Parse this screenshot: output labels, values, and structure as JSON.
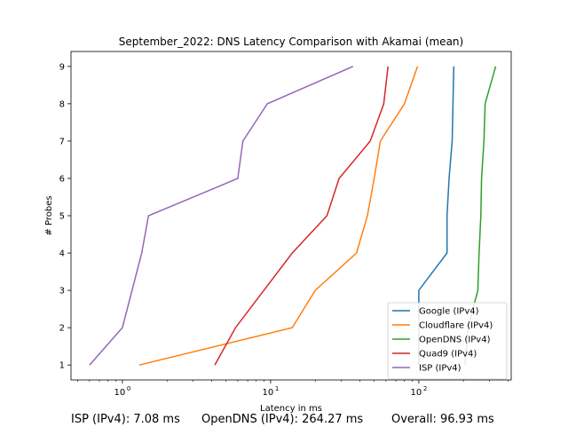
{
  "chart_data": {
    "type": "line",
    "title": "September_2022: DNS Latency Comparison with Akamai (mean)",
    "xlabel": "Latency in ms",
    "ylabel": "# Probes",
    "xscale": "log",
    "xlim": [
      0.45,
      420
    ],
    "ylim": [
      0.6,
      9.4
    ],
    "x_ticks": [
      1,
      10,
      100
    ],
    "x_tick_labels": [
      "10^0",
      "10^1",
      "10^2"
    ],
    "y_ticks": [
      1,
      2,
      3,
      4,
      5,
      6,
      7,
      8,
      9
    ],
    "grid": false,
    "legend_position": "bottom-right",
    "series": [
      {
        "name": "Google (IPv4)",
        "color": "#1f77b4",
        "points": [
          [
            100,
            1
          ],
          [
            100,
            2
          ],
          [
            100,
            3
          ],
          [
            155,
            4
          ],
          [
            155,
            5
          ],
          [
            160,
            6
          ],
          [
            168,
            7
          ],
          [
            170,
            8
          ],
          [
            172,
            9
          ]
        ]
      },
      {
        "name": "Cloudflare (IPv4)",
        "color": "#ff7f0e",
        "points": [
          [
            1.3,
            1
          ],
          [
            14,
            2
          ],
          [
            20,
            3
          ],
          [
            38,
            4
          ],
          [
            45,
            5
          ],
          [
            50,
            6
          ],
          [
            55,
            7
          ],
          [
            80,
            8
          ],
          [
            98,
            9
          ]
        ]
      },
      {
        "name": "OpenDNS (IPv4)",
        "color": "#2ca02c",
        "points": [
          [
            205,
            1
          ],
          [
            215,
            2
          ],
          [
            250,
            3
          ],
          [
            255,
            4
          ],
          [
            262,
            5
          ],
          [
            265,
            6
          ],
          [
            275,
            7
          ],
          [
            280,
            8
          ],
          [
            330,
            9
          ]
        ]
      },
      {
        "name": "Quad9 (IPv4)",
        "color": "#d62728",
        "points": [
          [
            4.2,
            1
          ],
          [
            5.8,
            2
          ],
          [
            9,
            3
          ],
          [
            14,
            4
          ],
          [
            24,
            5
          ],
          [
            29,
            6
          ],
          [
            47,
            7
          ],
          [
            58,
            8
          ],
          [
            62,
            9
          ]
        ]
      },
      {
        "name": "ISP (IPv4)",
        "color": "#9467bd",
        "points": [
          [
            0.6,
            1
          ],
          [
            1,
            2
          ],
          [
            1.35,
            4
          ],
          [
            1.5,
            5
          ],
          [
            6,
            6
          ],
          [
            6.5,
            7
          ],
          [
            9.5,
            8
          ],
          [
            36,
            9
          ]
        ]
      }
    ]
  },
  "footer": {
    "isp": "ISP (IPv4): 7.08 ms",
    "opendns": "OpenDNS (IPv4): 264.27 ms",
    "overall": "Overall: 96.93 ms"
  }
}
